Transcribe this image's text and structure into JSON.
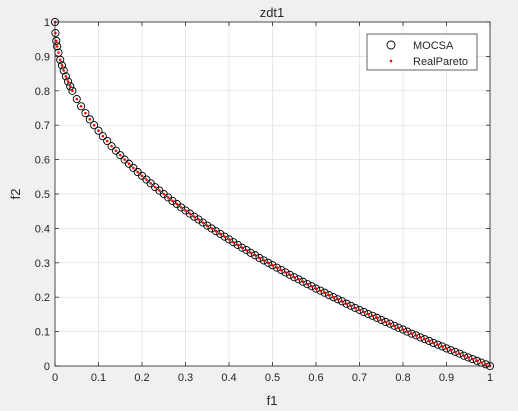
{
  "chart_data": {
    "type": "scatter",
    "title": "zdt1",
    "xlabel": "f1",
    "ylabel": "f2",
    "xlim": [
      0,
      1
    ],
    "ylim": [
      0,
      1
    ],
    "xticks": [
      "0",
      "0.1",
      "0.2",
      "0.3",
      "0.4",
      "0.5",
      "0.6",
      "0.7",
      "0.8",
      "0.9",
      "1"
    ],
    "yticks": [
      "0",
      "0.1",
      "0.2",
      "0.3",
      "0.4",
      "0.5",
      "0.6",
      "0.7",
      "0.8",
      "0.9",
      "1"
    ],
    "grid": true,
    "legend_position": "top-right",
    "series": [
      {
        "name": "MOCSA",
        "marker": "circle-open",
        "color": "#000000",
        "x": [
          0,
          0.001,
          0.003,
          0.005,
          0.008,
          0.012,
          0.016,
          0.02,
          0.025,
          0.03,
          0.035,
          0.04,
          0.05,
          0.06,
          0.07,
          0.08,
          0.09,
          0.1,
          0.11,
          0.12,
          0.13,
          0.14,
          0.15,
          0.16,
          0.17,
          0.18,
          0.19,
          0.2,
          0.21,
          0.22,
          0.23,
          0.24,
          0.25,
          0.26,
          0.27,
          0.28,
          0.29,
          0.3,
          0.31,
          0.32,
          0.33,
          0.34,
          0.35,
          0.36,
          0.37,
          0.38,
          0.39,
          0.4,
          0.41,
          0.42,
          0.43,
          0.44,
          0.45,
          0.46,
          0.47,
          0.48,
          0.49,
          0.5,
          0.51,
          0.52,
          0.53,
          0.54,
          0.55,
          0.56,
          0.57,
          0.58,
          0.59,
          0.6,
          0.61,
          0.62,
          0.63,
          0.64,
          0.65,
          0.66,
          0.67,
          0.68,
          0.69,
          0.7,
          0.71,
          0.72,
          0.73,
          0.74,
          0.75,
          0.76,
          0.77,
          0.78,
          0.79,
          0.8,
          0.81,
          0.82,
          0.83,
          0.84,
          0.85,
          0.86,
          0.87,
          0.88,
          0.89,
          0.9,
          0.91,
          0.92,
          0.93,
          0.94,
          0.95,
          0.96,
          0.97,
          0.98,
          0.99,
          1
        ],
        "y": [
          1,
          0.968,
          0.945,
          0.929,
          0.911,
          0.89,
          0.874,
          0.859,
          0.842,
          0.827,
          0.813,
          0.8,
          0.776,
          0.755,
          0.735,
          0.717,
          0.7,
          0.684,
          0.668,
          0.654,
          0.639,
          0.626,
          0.613,
          0.6,
          0.588,
          0.576,
          0.564,
          0.553,
          0.542,
          0.531,
          0.52,
          0.51,
          0.5,
          0.49,
          0.48,
          0.471,
          0.461,
          0.452,
          0.443,
          0.434,
          0.426,
          0.417,
          0.408,
          0.4,
          0.392,
          0.384,
          0.376,
          0.368,
          0.36,
          0.352,
          0.344,
          0.337,
          0.329,
          0.322,
          0.314,
          0.307,
          0.3,
          0.293,
          0.286,
          0.279,
          0.272,
          0.265,
          0.258,
          0.252,
          0.245,
          0.238,
          0.232,
          0.225,
          0.219,
          0.213,
          0.206,
          0.2,
          0.194,
          0.188,
          0.181,
          0.175,
          0.169,
          0.163,
          0.157,
          0.151,
          0.146,
          0.14,
          0.134,
          0.128,
          0.123,
          0.117,
          0.111,
          0.106,
          0.1,
          0.094,
          0.089,
          0.083,
          0.078,
          0.073,
          0.067,
          0.062,
          0.057,
          0.051,
          0.046,
          0.041,
          0.036,
          0.03,
          0.025,
          0.02,
          0.015,
          0.01,
          0.005,
          0
        ]
      },
      {
        "name": "RealPareto",
        "marker": "dot",
        "color": "#ff0000",
        "x": [
          0,
          0.001,
          0.003,
          0.005,
          0.008,
          0.012,
          0.016,
          0.02,
          0.025,
          0.03,
          0.035,
          0.04,
          0.05,
          0.06,
          0.07,
          0.08,
          0.09,
          0.1,
          0.11,
          0.12,
          0.13,
          0.14,
          0.15,
          0.16,
          0.17,
          0.18,
          0.19,
          0.2,
          0.21,
          0.22,
          0.23,
          0.24,
          0.25,
          0.26,
          0.27,
          0.28,
          0.29,
          0.3,
          0.31,
          0.32,
          0.33,
          0.34,
          0.35,
          0.36,
          0.37,
          0.38,
          0.39,
          0.4,
          0.41,
          0.42,
          0.43,
          0.44,
          0.45,
          0.46,
          0.47,
          0.48,
          0.49,
          0.5,
          0.51,
          0.52,
          0.53,
          0.54,
          0.55,
          0.56,
          0.57,
          0.58,
          0.59,
          0.6,
          0.61,
          0.62,
          0.63,
          0.64,
          0.65,
          0.66,
          0.67,
          0.68,
          0.69,
          0.7,
          0.71,
          0.72,
          0.73,
          0.74,
          0.75,
          0.76,
          0.77,
          0.78,
          0.79,
          0.8,
          0.81,
          0.82,
          0.83,
          0.84,
          0.85,
          0.86,
          0.87,
          0.88,
          0.89,
          0.9,
          0.91,
          0.92,
          0.93,
          0.94,
          0.95,
          0.96,
          0.97,
          0.98,
          0.99,
          1
        ],
        "y": [
          1,
          0.968,
          0.945,
          0.929,
          0.911,
          0.89,
          0.874,
          0.859,
          0.842,
          0.827,
          0.813,
          0.8,
          0.776,
          0.755,
          0.735,
          0.717,
          0.7,
          0.684,
          0.668,
          0.654,
          0.639,
          0.626,
          0.613,
          0.6,
          0.588,
          0.576,
          0.564,
          0.553,
          0.542,
          0.531,
          0.52,
          0.51,
          0.5,
          0.49,
          0.48,
          0.471,
          0.461,
          0.452,
          0.443,
          0.434,
          0.426,
          0.417,
          0.408,
          0.4,
          0.392,
          0.384,
          0.376,
          0.368,
          0.36,
          0.352,
          0.344,
          0.337,
          0.329,
          0.322,
          0.314,
          0.307,
          0.3,
          0.293,
          0.286,
          0.279,
          0.272,
          0.265,
          0.258,
          0.252,
          0.245,
          0.238,
          0.232,
          0.225,
          0.219,
          0.213,
          0.206,
          0.2,
          0.194,
          0.188,
          0.181,
          0.175,
          0.169,
          0.163,
          0.157,
          0.151,
          0.146,
          0.14,
          0.134,
          0.128,
          0.123,
          0.117,
          0.111,
          0.106,
          0.1,
          0.094,
          0.089,
          0.083,
          0.078,
          0.073,
          0.067,
          0.062,
          0.057,
          0.051,
          0.046,
          0.041,
          0.036,
          0.03,
          0.025,
          0.02,
          0.015,
          0.01,
          0.005,
          0
        ]
      }
    ]
  }
}
